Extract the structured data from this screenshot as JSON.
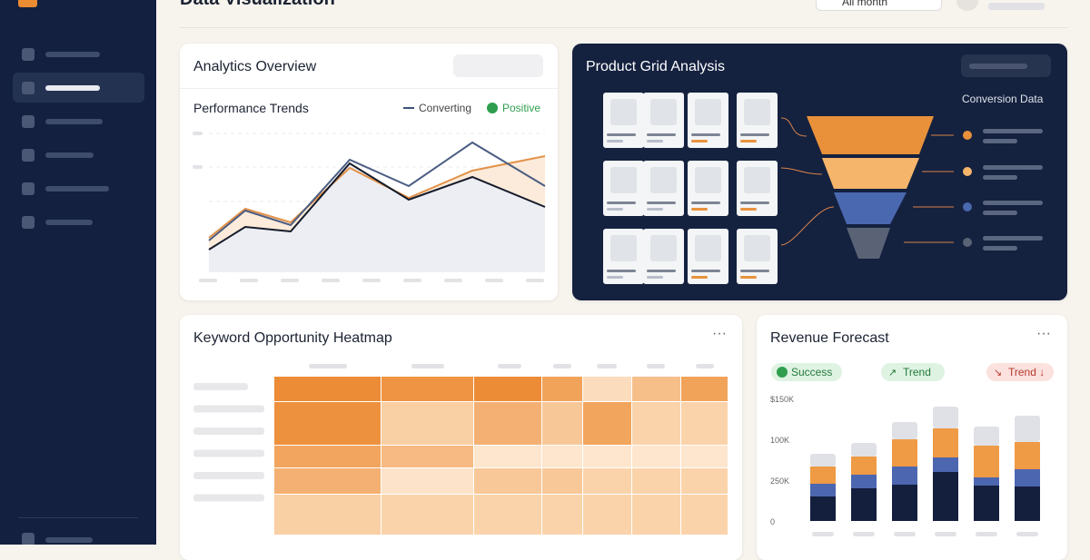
{
  "header": {
    "title": "Data Visualization",
    "period": "All month"
  },
  "analytics": {
    "title": "Analytics Overview",
    "subtitle": "Performance Trends",
    "legend": [
      "Converting",
      "Positive"
    ]
  },
  "product_grid": {
    "title": "Product Grid Analysis",
    "side_label": "Conversion Data"
  },
  "heatmap": {
    "title": "Keyword Opportunity Heatmap"
  },
  "revenue": {
    "title": "Revenue Forecast",
    "badges": [
      "Success",
      "Trend",
      "Trend ↓"
    ],
    "axis_labels": [
      "$150K",
      "100K",
      "250K",
      "0"
    ]
  }
}
